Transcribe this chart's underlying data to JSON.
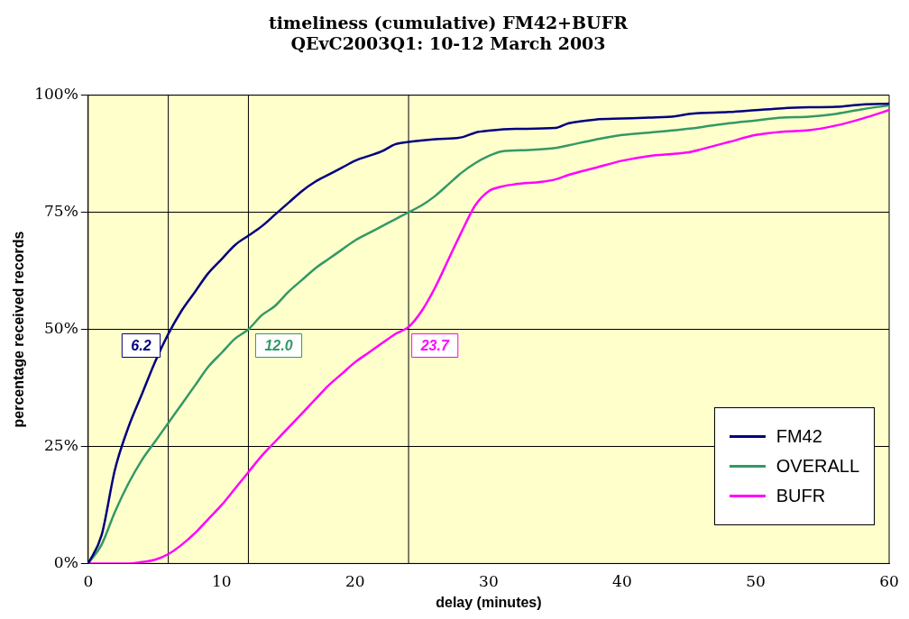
{
  "chart_data": {
    "type": "line",
    "title": "timeliness (cumulative) FM42+BUFR",
    "subtitle": "QEvC2003Q1: 10-12 March 2003",
    "xlabel": "delay (minutes)",
    "ylabel": "percentage received records",
    "xlim": [
      0,
      60
    ],
    "xticks": [
      0,
      10,
      20,
      30,
      40,
      50,
      60
    ],
    "ylim": [
      0,
      100
    ],
    "yticks": [
      {
        "value": 0,
        "label": "0%"
      },
      {
        "value": 25,
        "label": "25%"
      },
      {
        "value": 50,
        "label": "50%"
      },
      {
        "value": 75,
        "label": "75%"
      },
      {
        "value": 100,
        "label": "100%"
      }
    ],
    "grid": "y",
    "legend": "bottom right",
    "marker": "none",
    "line_style": "solid",
    "ref_lines": [
      {
        "axis": "x",
        "value": 6,
        "color": "#000000"
      },
      {
        "axis": "x",
        "value": 12,
        "color": "#000000"
      },
      {
        "axis": "x",
        "value": 24,
        "color": "#000000"
      }
    ],
    "annotations": [
      {
        "text": "6.2",
        "x": 6.2,
        "y": 50
      },
      {
        "text": "12.0",
        "x": 12.0,
        "y": 50
      },
      {
        "text": "23.7",
        "x": 23.7,
        "y": 50
      }
    ],
    "series": [
      {
        "name": "FM42",
        "color": "#000080",
        "x": [
          0,
          1,
          2,
          3,
          4,
          5,
          6,
          7,
          8,
          9,
          10,
          11,
          12,
          13,
          14,
          15,
          16,
          17,
          18,
          19,
          20,
          22,
          23,
          24,
          26,
          28,
          29,
          30,
          32,
          35,
          36,
          38,
          40,
          42,
          44,
          45,
          48,
          50,
          52,
          54,
          56,
          58,
          60
        ],
        "values": [
          0,
          6,
          20,
          29,
          36,
          43,
          49,
          54,
          58,
          62,
          65,
          68,
          70,
          72,
          74.5,
          77,
          79.5,
          81.5,
          83,
          84.5,
          86,
          88,
          89.5,
          90,
          90.6,
          91,
          92,
          92.4,
          92.8,
          93,
          94,
          94.8,
          95,
          95.2,
          95.5,
          96,
          96.4,
          96.8,
          97.2,
          97.4,
          97.5,
          98,
          98.2
        ]
      },
      {
        "name": "OVERALL",
        "color": "#339966",
        "x": [
          0,
          1,
          2,
          3,
          4,
          5,
          6,
          7,
          8,
          9,
          10,
          11,
          12,
          13,
          14,
          15,
          16,
          17,
          18,
          19,
          20,
          21,
          22,
          23,
          24,
          25,
          26,
          27,
          28,
          29,
          30,
          31,
          33,
          35,
          36,
          38,
          40,
          42,
          44,
          46,
          48,
          50,
          52,
          54,
          56,
          58,
          60
        ],
        "values": [
          0,
          4,
          11,
          17,
          22,
          26,
          30,
          34,
          38,
          42,
          45,
          48,
          50,
          53,
          55,
          58,
          60.5,
          63,
          65,
          67,
          69,
          70.5,
          72,
          73.5,
          75,
          76.5,
          78.5,
          81,
          83.5,
          85.5,
          87,
          88,
          88.3,
          88.7,
          89.3,
          90.5,
          91.5,
          92,
          92.5,
          93.2,
          94,
          94.6,
          95.2,
          95.4,
          96,
          97,
          97.8
        ]
      },
      {
        "name": "BUFR",
        "color": "#ff00ff",
        "x": [
          0,
          3,
          4,
          5,
          6,
          7,
          8,
          9,
          10,
          11,
          12,
          13,
          14,
          15,
          16,
          17,
          18,
          19,
          20,
          21,
          22,
          23,
          24,
          25,
          26,
          27,
          28,
          29,
          30,
          31,
          32,
          34,
          35,
          36,
          38,
          40,
          42,
          44,
          45,
          46,
          48,
          50,
          52,
          54,
          56,
          58,
          60
        ],
        "values": [
          0,
          0,
          0.3,
          0.8,
          2,
          4,
          6.5,
          9.5,
          12.5,
          16,
          19.5,
          23,
          26,
          29,
          32,
          35,
          38,
          40.5,
          43,
          45,
          47,
          49,
          50.5,
          54,
          59,
          65,
          71,
          76.5,
          79.5,
          80.5,
          81,
          81.5,
          82,
          83,
          84.5,
          86,
          87,
          87.5,
          87.8,
          88.5,
          90,
          91.5,
          92.2,
          92.5,
          93.5,
          95,
          96.8
        ]
      }
    ]
  }
}
